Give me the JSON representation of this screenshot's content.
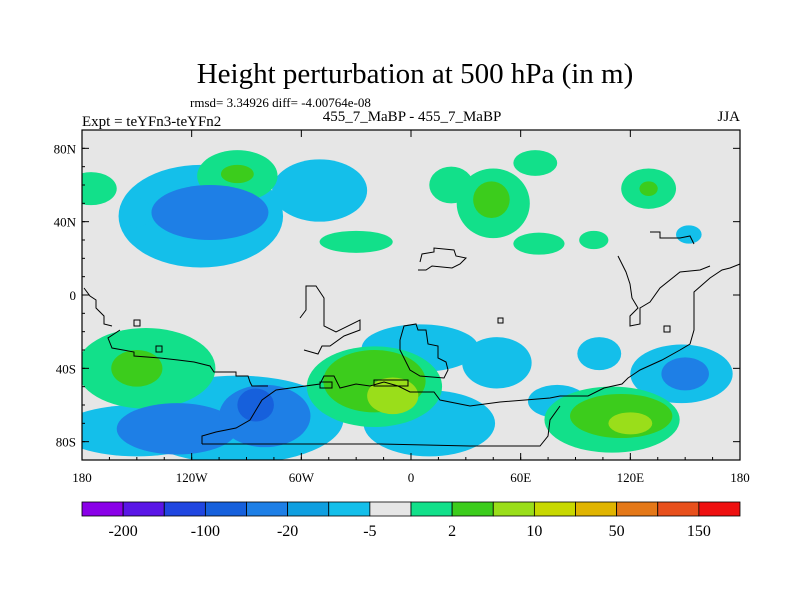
{
  "chart_data": {
    "type": "map-contour",
    "title": "Height perturbation at 500 hPa (in m)",
    "stats": "rmsd= 3.34926 diff= -4.00764e-08",
    "left_label": "Expt = teYFn3-teYFn2",
    "center_label": "455_7_MaBP - 455_7_MaBP",
    "right_label": "JJA",
    "x_ticks": [
      {
        "value": -180,
        "label": "180"
      },
      {
        "value": -120,
        "label": "120W"
      },
      {
        "value": -60,
        "label": "60W"
      },
      {
        "value": 0,
        "label": "0"
      },
      {
        "value": 60,
        "label": "60E"
      },
      {
        "value": 120,
        "label": "120E"
      },
      {
        "value": 180,
        "label": "180"
      }
    ],
    "y_ticks": [
      {
        "value": 80,
        "label": "80N"
      },
      {
        "value": 40,
        "label": "40N"
      },
      {
        "value": 0,
        "label": "0"
      },
      {
        "value": -40,
        "label": "40S"
      },
      {
        "value": -80,
        "label": "80S"
      }
    ],
    "x_range": [
      -180,
      180
    ],
    "y_range": [
      -90,
      90
    ],
    "colorbar": {
      "colors": [
        "#8a00e8",
        "#5a16e6",
        "#2046e0",
        "#1660dc",
        "#1e7fe6",
        "#0f9fe0",
        "#14bfea",
        "#e6e6e6",
        "#12e08a",
        "#3ccc1c",
        "#9ade1a",
        "#c8d800",
        "#e0b400",
        "#e47818",
        "#e8501c",
        "#ee1010"
      ],
      "labels": [
        {
          "after_box": 1,
          "text": "-200"
        },
        {
          "after_box": 3,
          "text": "-100"
        },
        {
          "after_box": 5,
          "text": "-20"
        },
        {
          "after_box": 7,
          "text": "-5"
        },
        {
          "after_box": 9,
          "text": "2"
        },
        {
          "after_box": 11,
          "text": "10"
        },
        {
          "after_box": 13,
          "text": "50"
        },
        {
          "after_box": 15,
          "text": "150"
        }
      ]
    },
    "fields": [
      {
        "name": "light-cyan",
        "level": -5,
        "color": "#14bfea",
        "blobs": [
          {
            "lon": -115,
            "lat": 43,
            "rx": 45,
            "ry": 28
          },
          {
            "lon": -50,
            "lat": 57,
            "rx": 26,
            "ry": 17
          },
          {
            "lon": -150,
            "lat": 45,
            "rx": 8,
            "ry": 8
          },
          {
            "lon": 152,
            "lat": 33,
            "rx": 7,
            "ry": 5
          },
          {
            "lon": -150,
            "lat": -74,
            "rx": 42,
            "ry": 14
          },
          {
            "lon": -95,
            "lat": -68,
            "rx": 58,
            "ry": 24
          },
          {
            "lon": 5,
            "lat": -29,
            "rx": 32,
            "ry": 13
          },
          {
            "lon": 47,
            "lat": -37,
            "rx": 19,
            "ry": 14
          },
          {
            "lon": 103,
            "lat": -32,
            "rx": 12,
            "ry": 9
          },
          {
            "lon": 148,
            "lat": -43,
            "rx": 28,
            "ry": 16
          },
          {
            "lon": 10,
            "lat": -70,
            "rx": 36,
            "ry": 18
          },
          {
            "lon": -45,
            "lat": -57,
            "rx": 13,
            "ry": 13
          },
          {
            "lon": 80,
            "lat": -58,
            "rx": 16,
            "ry": 9
          }
        ]
      },
      {
        "name": "green",
        "level": 2,
        "color": "#12e08a",
        "blobs": [
          {
            "lon": -95,
            "lat": 65,
            "rx": 22,
            "ry": 14
          },
          {
            "lon": 45,
            "lat": 50,
            "rx": 20,
            "ry": 19
          },
          {
            "lon": 22,
            "lat": 60,
            "rx": 12,
            "ry": 10
          },
          {
            "lon": 68,
            "lat": 72,
            "rx": 12,
            "ry": 7
          },
          {
            "lon": 130,
            "lat": 58,
            "rx": 15,
            "ry": 11
          },
          {
            "lon": -175,
            "lat": 58,
            "rx": 14,
            "ry": 9
          },
          {
            "lon": -30,
            "lat": 29,
            "rx": 20,
            "ry": 6
          },
          {
            "lon": 70,
            "lat": 28,
            "rx": 14,
            "ry": 6
          },
          {
            "lon": -145,
            "lat": -40,
            "rx": 38,
            "ry": 22
          },
          {
            "lon": -20,
            "lat": -50,
            "rx": 37,
            "ry": 22
          },
          {
            "lon": 110,
            "lat": -68,
            "rx": 37,
            "ry": 18
          },
          {
            "lon": 100,
            "lat": 30,
            "rx": 8,
            "ry": 5
          }
        ]
      },
      {
        "name": "blue",
        "level": -20,
        "color": "#1e7fe6",
        "blobs": [
          {
            "lon": -110,
            "lat": 45,
            "rx": 32,
            "ry": 15
          },
          {
            "lon": -128,
            "lat": -73,
            "rx": 33,
            "ry": 14
          },
          {
            "lon": -80,
            "lat": -66,
            "rx": 25,
            "ry": 17
          },
          {
            "lon": 150,
            "lat": -43,
            "rx": 13,
            "ry": 9
          }
        ]
      },
      {
        "name": "mid-green",
        "level": 10,
        "color": "#3ccc1c",
        "blobs": [
          {
            "lon": -95,
            "lat": 66,
            "rx": 9,
            "ry": 5
          },
          {
            "lon": 44,
            "lat": 52,
            "rx": 10,
            "ry": 10
          },
          {
            "lon": 130,
            "lat": 58,
            "rx": 5,
            "ry": 4
          },
          {
            "lon": -150,
            "lat": -40,
            "rx": 14,
            "ry": 10
          },
          {
            "lon": -20,
            "lat": -47,
            "rx": 28,
            "ry": 17
          },
          {
            "lon": 115,
            "lat": -66,
            "rx": 28,
            "ry": 12
          }
        ]
      },
      {
        "name": "dark-blue",
        "level": -50,
        "color": "#1660dc",
        "blobs": [
          {
            "lon": -85,
            "lat": -60,
            "rx": 10,
            "ry": 9
          }
        ]
      },
      {
        "name": "yellow-green",
        "level": 20,
        "color": "#9ade1a",
        "blobs": [
          {
            "lon": -10,
            "lat": -55,
            "rx": 14,
            "ry": 10
          },
          {
            "lon": 120,
            "lat": -70,
            "rx": 12,
            "ry": 6
          }
        ]
      }
    ]
  }
}
